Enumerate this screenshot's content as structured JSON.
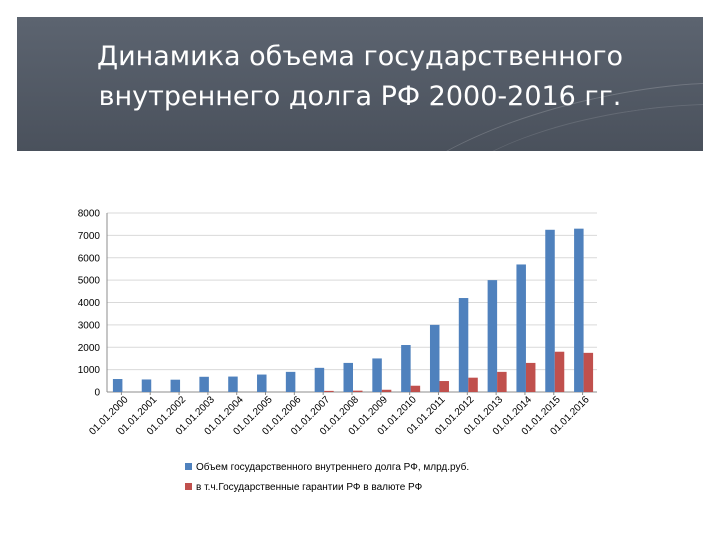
{
  "slide": {
    "title_lines": [
      "Динамика объема государственного",
      "внутреннего долга РФ 2000-2016 гг."
    ]
  },
  "chart_data": {
    "type": "bar",
    "categories": [
      "01.01.2000",
      "01.01.2001",
      "01.01.2002",
      "01.01.2003",
      "01.01.2004",
      "01.01.2005",
      "01.01.2006",
      "01.01.2007",
      "01.01.2008",
      "01.01.2009",
      "01.01.2010",
      "01.01.2011",
      "01.01.2012",
      "01.01.2013",
      "01.01.2014",
      "01.01.2015",
      "01.01.2016"
    ],
    "series": [
      {
        "name": "Объем государственного внутреннего долга РФ, млрд.руб.",
        "color": "#4f81bd",
        "values": [
          580,
          560,
          550,
          680,
          690,
          780,
          900,
          1080,
          1300,
          1500,
          2100,
          3000,
          4200,
          5000,
          5700,
          7250,
          7300
        ]
      },
      {
        "name": "в т.ч.Государственные гарантии РФ в валюте РФ",
        "color": "#c0504d",
        "values": [
          0,
          0,
          0,
          0,
          0,
          0,
          0,
          50,
          60,
          100,
          280,
          490,
          640,
          900,
          1300,
          1800,
          1750
        ]
      }
    ],
    "y_ticks": [
      0,
      1000,
      2000,
      3000,
      4000,
      5000,
      6000,
      7000,
      8000
    ],
    "ylim": [
      0,
      8000
    ],
    "grid": true,
    "legend_position": "bottom"
  }
}
